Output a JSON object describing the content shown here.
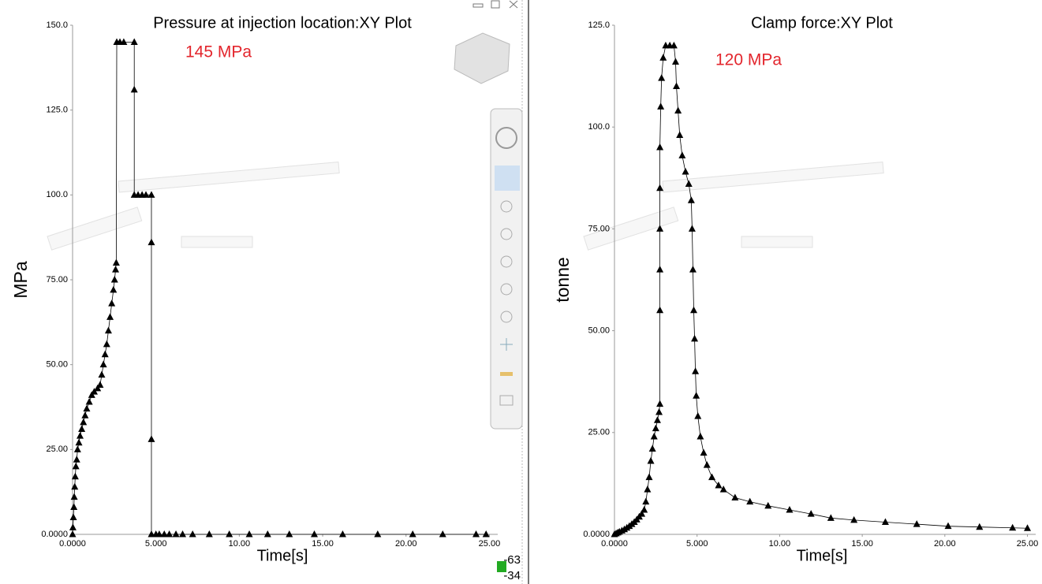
{
  "chart_data": [
    {
      "type": "line",
      "title": "Pressure at injection location:XY Plot",
      "annotation": "145 MPa",
      "annotation_color": "#e3262d",
      "xlabel": "Time[s]",
      "ylabel": "MPa",
      "x": [
        0,
        0.02,
        0.05,
        0.08,
        0.1,
        0.13,
        0.16,
        0.2,
        0.25,
        0.3,
        0.38,
        0.45,
        0.55,
        0.65,
        0.75,
        0.85,
        1.0,
        1.15,
        1.3,
        1.5,
        1.65,
        1.75,
        1.85,
        1.95,
        2.05,
        2.15,
        2.25,
        2.35,
        2.45,
        2.52,
        2.58,
        2.62,
        2.65,
        2.84,
        3.07,
        3.7,
        3.7,
        3.7,
        3.93,
        4.17,
        4.4,
        4.73,
        4.73,
        4.73,
        4.73,
        5.0,
        5.2,
        5.5,
        5.8,
        6.2,
        6.6,
        7.2,
        8.2,
        9.4,
        10.6,
        11.7,
        13.0,
        14.5,
        16.2,
        18.3,
        20.4,
        22.2,
        24.2,
        24.8
      ],
      "series": [
        {
          "color": "#000000",
          "values": [
            0,
            2,
            5,
            8,
            11,
            14,
            17,
            20,
            22,
            25,
            27,
            29,
            31,
            33,
            35,
            37,
            39,
            41,
            42,
            43,
            44,
            47,
            50,
            53,
            56,
            60,
            64,
            68,
            72,
            75,
            78,
            80,
            145,
            145,
            145,
            145,
            131,
            100,
            100,
            100,
            100,
            100,
            86,
            28,
            0,
            0,
            0,
            0,
            0,
            0,
            0,
            0,
            0,
            0,
            0,
            0,
            0,
            0,
            0,
            0,
            0,
            0,
            0,
            0
          ]
        }
      ],
      "xlim": [
        0,
        25.5
      ],
      "ylim": [
        0,
        150
      ],
      "grid": false,
      "xticks": [
        {
          "value": 0,
          "label": "0.0000"
        },
        {
          "value": 5,
          "label": "5.000"
        },
        {
          "value": 10,
          "label": "10.00"
        },
        {
          "value": 15,
          "label": "15.00"
        },
        {
          "value": 20,
          "label": "20.00"
        },
        {
          "value": 25,
          "label": "25.00"
        }
      ],
      "yticks": [
        {
          "value": 0,
          "label": "0.0000"
        },
        {
          "value": 25,
          "label": "25.00"
        },
        {
          "value": 50,
          "label": "50.00"
        },
        {
          "value": 75,
          "label": "75.00"
        },
        {
          "value": 100,
          "label": "100.0"
        },
        {
          "value": 125,
          "label": "125.0"
        },
        {
          "value": 150,
          "label": "150.0"
        }
      ]
    },
    {
      "type": "line",
      "title": "Clamp force:XY Plot",
      "annotation": "120 MPa",
      "annotation_color": "#e3262d",
      "xlabel": "Time[s]",
      "ylabel": "tonne",
      "x": [
        0,
        0.1,
        0.2,
        0.3,
        0.45,
        0.6,
        0.75,
        0.9,
        1.05,
        1.2,
        1.35,
        1.5,
        1.65,
        1.8,
        1.9,
        2.0,
        2.1,
        2.2,
        2.3,
        2.4,
        2.5,
        2.6,
        2.7,
        2.75,
        2.75,
        2.75,
        2.75,
        2.75,
        2.75,
        2.8,
        2.85,
        2.95,
        3.1,
        3.35,
        3.6,
        3.7,
        3.75,
        3.85,
        3.95,
        4.1,
        4.3,
        4.5,
        4.65,
        4.7,
        4.75,
        4.8,
        4.85,
        4.9,
        4.95,
        5.05,
        5.2,
        5.4,
        5.6,
        5.9,
        6.3,
        6.6,
        7.3,
        8.2,
        9.3,
        10.6,
        11.9,
        13.1,
        14.5,
        16.4,
        18.3,
        20.2,
        22.1,
        24.1,
        25.0
      ],
      "series": [
        {
          "color": "#000000",
          "values": [
            0,
            0.2,
            0.4,
            0.6,
            0.9,
            1.2,
            1.6,
            2,
            2.5,
            3,
            3.6,
            4.3,
            5,
            6,
            8,
            11,
            14,
            18,
            21,
            24,
            26,
            28,
            30,
            32,
            55,
            65,
            75,
            85,
            95,
            105,
            112,
            117,
            120,
            120,
            120,
            116,
            110,
            104,
            98,
            93,
            89,
            86,
            82,
            75,
            65,
            55,
            48,
            40,
            34,
            29,
            24,
            20,
            17,
            14,
            12,
            11,
            9,
            8,
            7,
            6,
            5,
            4,
            3.5,
            3,
            2.5,
            2,
            1.8,
            1.6,
            1.5
          ]
        }
      ],
      "xlim": [
        0,
        25.5
      ],
      "ylim": [
        0,
        125
      ],
      "grid": false,
      "xticks": [
        {
          "value": 0,
          "label": "0.0000"
        },
        {
          "value": 5,
          "label": "5.000"
        },
        {
          "value": 10,
          "label": "10.00"
        },
        {
          "value": 15,
          "label": "15.00"
        },
        {
          "value": 20,
          "label": "20.00"
        },
        {
          "value": 25,
          "label": "25.00"
        }
      ],
      "yticks": [
        {
          "value": 0,
          "label": "0.0000"
        },
        {
          "value": 25,
          "label": "25.00"
        },
        {
          "value": 50,
          "label": "50.00"
        },
        {
          "value": 75,
          "label": "75.00"
        },
        {
          "value": 100,
          "label": "100.0"
        },
        {
          "value": 125,
          "label": "125.0"
        }
      ]
    }
  ],
  "viewer": {
    "triad_labels": [
      "-63",
      "-34"
    ]
  }
}
